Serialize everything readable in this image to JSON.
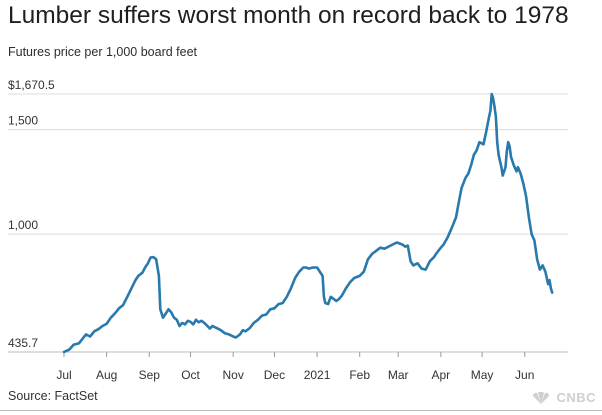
{
  "header": {
    "title": "Lumber suffers worst month on record back to 1978",
    "subtitle": "Futures price per 1,000 board feet"
  },
  "footer": {
    "source": "Source: FactSet",
    "logo_text": "CNBC"
  },
  "colors": {
    "line": "#2a79ad",
    "grid": "#dcdcdc",
    "axis": "#bdbdbd",
    "text": "#333333"
  },
  "chart_data": {
    "type": "line",
    "title": "Lumber suffers worst month on record back to 1978",
    "subtitle": "Futures price per 1,000 board feet",
    "xlabel": "",
    "ylabel": "",
    "ylim": [
      435.7,
      1670.5
    ],
    "xlim": [
      "2020-07-01",
      "2021-07-01"
    ],
    "grid": "horizontal",
    "y_ticks": [
      {
        "value": 1670.5,
        "label": "$1,670.5"
      },
      {
        "value": 1500,
        "label": "1,500"
      },
      {
        "value": 1000,
        "label": "1,000"
      },
      {
        "value": 435.7,
        "label": "435.7"
      }
    ],
    "x_ticks": [
      {
        "date": "2020-07-01",
        "label": "Jul"
      },
      {
        "date": "2020-08-01",
        "label": "Aug"
      },
      {
        "date": "2020-09-01",
        "label": "Sep"
      },
      {
        "date": "2020-10-01",
        "label": "Oct"
      },
      {
        "date": "2020-11-01",
        "label": "Nov"
      },
      {
        "date": "2020-12-01",
        "label": "Dec"
      },
      {
        "date": "2021-01-01",
        "label": "2021"
      },
      {
        "date": "2021-02-01",
        "label": "Feb"
      },
      {
        "date": "2021-03-01",
        "label": "Mar"
      },
      {
        "date": "2021-04-01",
        "label": "Apr"
      },
      {
        "date": "2021-05-01",
        "label": "May"
      },
      {
        "date": "2021-06-01",
        "label": "Jun"
      }
    ],
    "series": [
      {
        "name": "",
        "points": [
          [
            "2020-07-01",
            436
          ],
          [
            "2020-07-03",
            442
          ],
          [
            "2020-07-05",
            448
          ],
          [
            "2020-07-08",
            470
          ],
          [
            "2020-07-12",
            478
          ],
          [
            "2020-07-14",
            495
          ],
          [
            "2020-07-17",
            520
          ],
          [
            "2020-07-20",
            510
          ],
          [
            "2020-07-23",
            535
          ],
          [
            "2020-07-26",
            545
          ],
          [
            "2020-07-29",
            560
          ],
          [
            "2020-08-01",
            570
          ],
          [
            "2020-08-04",
            600
          ],
          [
            "2020-08-07",
            620
          ],
          [
            "2020-08-10",
            645
          ],
          [
            "2020-08-13",
            660
          ],
          [
            "2020-08-16",
            700
          ],
          [
            "2020-08-19",
            740
          ],
          [
            "2020-08-22",
            780
          ],
          [
            "2020-08-24",
            800
          ],
          [
            "2020-08-27",
            815
          ],
          [
            "2020-08-29",
            840
          ],
          [
            "2020-08-31",
            860
          ],
          [
            "2020-09-02",
            888
          ],
          [
            "2020-09-04",
            890
          ],
          [
            "2020-09-06",
            880
          ],
          [
            "2020-09-07",
            840
          ],
          [
            "2020-09-08",
            800
          ],
          [
            "2020-09-09",
            640
          ],
          [
            "2020-09-11",
            600
          ],
          [
            "2020-09-13",
            620
          ],
          [
            "2020-09-15",
            640
          ],
          [
            "2020-09-17",
            625
          ],
          [
            "2020-09-19",
            600
          ],
          [
            "2020-09-21",
            590
          ],
          [
            "2020-09-23",
            560
          ],
          [
            "2020-09-25",
            575
          ],
          [
            "2020-09-27",
            568
          ],
          [
            "2020-09-29",
            585
          ],
          [
            "2020-10-01",
            580
          ],
          [
            "2020-10-03",
            568
          ],
          [
            "2020-10-05",
            590
          ],
          [
            "2020-10-07",
            578
          ],
          [
            "2020-10-09",
            585
          ],
          [
            "2020-10-11",
            575
          ],
          [
            "2020-10-13",
            562
          ],
          [
            "2020-10-15",
            548
          ],
          [
            "2020-10-17",
            560
          ],
          [
            "2020-10-20",
            550
          ],
          [
            "2020-10-23",
            540
          ],
          [
            "2020-10-26",
            525
          ],
          [
            "2020-10-29",
            520
          ],
          [
            "2020-11-01",
            510
          ],
          [
            "2020-11-03",
            505
          ],
          [
            "2020-11-06",
            520
          ],
          [
            "2020-11-08",
            540
          ],
          [
            "2020-11-10",
            535
          ],
          [
            "2020-11-13",
            550
          ],
          [
            "2020-11-16",
            575
          ],
          [
            "2020-11-19",
            590
          ],
          [
            "2020-11-22",
            610
          ],
          [
            "2020-11-25",
            615
          ],
          [
            "2020-11-28",
            640
          ],
          [
            "2020-12-01",
            645
          ],
          [
            "2020-12-04",
            665
          ],
          [
            "2020-12-07",
            670
          ],
          [
            "2020-12-10",
            700
          ],
          [
            "2020-12-13",
            740
          ],
          [
            "2020-12-16",
            790
          ],
          [
            "2020-12-19",
            820
          ],
          [
            "2020-12-22",
            840
          ],
          [
            "2020-12-24",
            840
          ],
          [
            "2020-12-26",
            835
          ],
          [
            "2020-12-29",
            840
          ],
          [
            "2021-01-01",
            840
          ],
          [
            "2021-01-03",
            820
          ],
          [
            "2021-01-05",
            800
          ],
          [
            "2021-01-06",
            700
          ],
          [
            "2021-01-07",
            670
          ],
          [
            "2021-01-09",
            665
          ],
          [
            "2021-01-11",
            700
          ],
          [
            "2021-01-13",
            690
          ],
          [
            "2021-01-15",
            680
          ],
          [
            "2021-01-17",
            690
          ],
          [
            "2021-01-19",
            705
          ],
          [
            "2021-01-22",
            740
          ],
          [
            "2021-01-25",
            770
          ],
          [
            "2021-01-28",
            790
          ],
          [
            "2021-02-01",
            800
          ],
          [
            "2021-02-04",
            820
          ],
          [
            "2021-02-07",
            880
          ],
          [
            "2021-02-10",
            905
          ],
          [
            "2021-02-13",
            920
          ],
          [
            "2021-02-16",
            935
          ],
          [
            "2021-02-19",
            930
          ],
          [
            "2021-02-22",
            940
          ],
          [
            "2021-02-25",
            950
          ],
          [
            "2021-02-28",
            960
          ],
          [
            "2021-03-02",
            955
          ],
          [
            "2021-03-04",
            950
          ],
          [
            "2021-03-06",
            940
          ],
          [
            "2021-03-08",
            945
          ],
          [
            "2021-03-10",
            870
          ],
          [
            "2021-03-12",
            850
          ],
          [
            "2021-03-15",
            860
          ],
          [
            "2021-03-18",
            835
          ],
          [
            "2021-03-21",
            830
          ],
          [
            "2021-03-24",
            870
          ],
          [
            "2021-03-27",
            890
          ],
          [
            "2021-03-29",
            910
          ],
          [
            "2021-04-01",
            935
          ],
          [
            "2021-04-03",
            950
          ],
          [
            "2021-04-06",
            985
          ],
          [
            "2021-04-09",
            1030
          ],
          [
            "2021-04-12",
            1080
          ],
          [
            "2021-04-14",
            1150
          ],
          [
            "2021-04-16",
            1220
          ],
          [
            "2021-04-19",
            1270
          ],
          [
            "2021-04-21",
            1290
          ],
          [
            "2021-04-23",
            1330
          ],
          [
            "2021-04-25",
            1380
          ],
          [
            "2021-04-27",
            1400
          ],
          [
            "2021-04-29",
            1440
          ],
          [
            "2021-05-02",
            1430
          ],
          [
            "2021-05-04",
            1490
          ],
          [
            "2021-05-06",
            1560
          ],
          [
            "2021-05-07",
            1590
          ],
          [
            "2021-05-08",
            1670
          ],
          [
            "2021-05-09",
            1650
          ],
          [
            "2021-05-10",
            1610
          ],
          [
            "2021-05-11",
            1560
          ],
          [
            "2021-05-12",
            1440
          ],
          [
            "2021-05-13",
            1380
          ],
          [
            "2021-05-14",
            1350
          ],
          [
            "2021-05-15",
            1320
          ],
          [
            "2021-05-16",
            1280
          ],
          [
            "2021-05-17",
            1300
          ],
          [
            "2021-05-18",
            1320
          ],
          [
            "2021-05-19",
            1400
          ],
          [
            "2021-05-20",
            1440
          ],
          [
            "2021-05-21",
            1420
          ],
          [
            "2021-05-22",
            1370
          ],
          [
            "2021-05-24",
            1330
          ],
          [
            "2021-05-26",
            1300
          ],
          [
            "2021-05-27",
            1320
          ],
          [
            "2021-05-29",
            1290
          ],
          [
            "2021-05-31",
            1240
          ],
          [
            "2021-06-02",
            1180
          ],
          [
            "2021-06-04",
            1080
          ],
          [
            "2021-06-06",
            1000
          ],
          [
            "2021-06-08",
            970
          ],
          [
            "2021-06-10",
            880
          ],
          [
            "2021-06-12",
            830
          ],
          [
            "2021-06-14",
            850
          ],
          [
            "2021-06-16",
            820
          ],
          [
            "2021-06-18",
            760
          ],
          [
            "2021-06-19",
            780
          ],
          [
            "2021-06-20",
            740
          ],
          [
            "2021-06-21",
            720
          ]
        ]
      }
    ]
  }
}
